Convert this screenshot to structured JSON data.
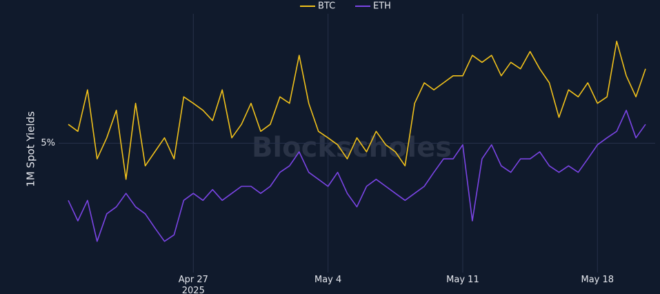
{
  "chart_data": {
    "type": "line",
    "y_label": "1M Spot Yields",
    "watermark": "Blockscholes",
    "x": [
      "2025-04-20T12:00",
      "2025-04-21T00:00",
      "2025-04-21T12:00",
      "2025-04-22T00:00",
      "2025-04-22T12:00",
      "2025-04-23T00:00",
      "2025-04-23T12:00",
      "2025-04-24T00:00",
      "2025-04-24T12:00",
      "2025-04-25T00:00",
      "2025-04-25T12:00",
      "2025-04-26T00:00",
      "2025-04-26T12:00",
      "2025-04-27T00:00",
      "2025-04-27T12:00",
      "2025-04-28T00:00",
      "2025-04-28T12:00",
      "2025-04-29T00:00",
      "2025-04-29T12:00",
      "2025-04-30T00:00",
      "2025-04-30T12:00",
      "2025-05-01T00:00",
      "2025-05-01T12:00",
      "2025-05-02T00:00",
      "2025-05-02T12:00",
      "2025-05-03T00:00",
      "2025-05-03T12:00",
      "2025-05-04T00:00",
      "2025-05-04T12:00",
      "2025-05-05T00:00",
      "2025-05-05T12:00",
      "2025-05-06T00:00",
      "2025-05-06T12:00",
      "2025-05-07T00:00",
      "2025-05-07T12:00",
      "2025-05-08T00:00",
      "2025-05-08T12:00",
      "2025-05-09T00:00",
      "2025-05-09T12:00",
      "2025-05-10T00:00",
      "2025-05-10T12:00",
      "2025-05-11T00:00",
      "2025-05-11T12:00",
      "2025-05-12T00:00",
      "2025-05-12T12:00",
      "2025-05-13T00:00",
      "2025-05-13T12:00",
      "2025-05-14T00:00",
      "2025-05-14T12:00",
      "2025-05-15T00:00",
      "2025-05-15T12:00",
      "2025-05-16T00:00",
      "2025-05-16T12:00",
      "2025-05-17T00:00",
      "2025-05-17T12:00",
      "2025-05-18T00:00",
      "2025-05-18T12:00",
      "2025-05-19T00:00",
      "2025-05-19T12:00",
      "2025-05-20T00:00",
      "2025-05-20T12:00"
    ],
    "series": [
      {
        "name": "BTC",
        "color": "#f2c21b",
        "values": [
          5.35,
          5.22,
          5.99,
          4.71,
          5.1,
          5.61,
          4.33,
          5.74,
          4.58,
          4.84,
          5.1,
          4.71,
          5.86,
          5.74,
          5.61,
          5.42,
          5.99,
          5.1,
          5.35,
          5.74,
          5.22,
          5.35,
          5.86,
          5.74,
          6.63,
          5.74,
          5.22,
          5.1,
          4.97,
          4.71,
          5.1,
          4.84,
          5.22,
          4.97,
          4.84,
          4.58,
          5.74,
          6.12,
          5.99,
          6.12,
          6.25,
          6.25,
          6.63,
          6.5,
          6.63,
          6.25,
          6.5,
          6.38,
          6.7,
          6.38,
          6.12,
          5.48,
          5.99,
          5.86,
          6.12,
          5.74,
          5.86,
          6.89,
          6.25,
          5.86,
          6.38
        ]
      },
      {
        "name": "ETH",
        "color": "#7b45e6",
        "values": [
          3.94,
          3.56,
          3.94,
          3.18,
          3.69,
          3.82,
          4.07,
          3.82,
          3.69,
          3.43,
          3.18,
          3.3,
          3.94,
          4.07,
          3.94,
          4.14,
          3.94,
          4.07,
          4.2,
          4.2,
          4.07,
          4.2,
          4.46,
          4.58,
          4.84,
          4.46,
          4.33,
          4.2,
          4.46,
          4.07,
          3.82,
          4.2,
          4.33,
          4.2,
          4.07,
          3.94,
          4.07,
          4.2,
          4.46,
          4.71,
          4.71,
          4.97,
          3.56,
          4.71,
          4.97,
          4.58,
          4.46,
          4.71,
          4.71,
          4.84,
          4.58,
          4.46,
          4.58,
          4.46,
          4.71,
          4.97,
          5.1,
          5.22,
          5.61,
          5.1,
          5.35
        ]
      }
    ],
    "xlim": [
      "2025-04-20T00:00",
      "2025-05-21T00:00"
    ],
    "xticks": [
      {
        "value": "2025-04-27T00:00",
        "label": "Apr 27\n2025"
      },
      {
        "value": "2025-05-04T00:00",
        "label": "May 4"
      },
      {
        "value": "2025-05-11T00:00",
        "label": "May 11"
      },
      {
        "value": "2025-05-18T00:00",
        "label": "May 18"
      }
    ],
    "ylim": [
      2.6,
      7.4
    ],
    "yticks": [
      {
        "value": 5,
        "label": "5%"
      }
    ],
    "grid": true,
    "legend": "top"
  }
}
